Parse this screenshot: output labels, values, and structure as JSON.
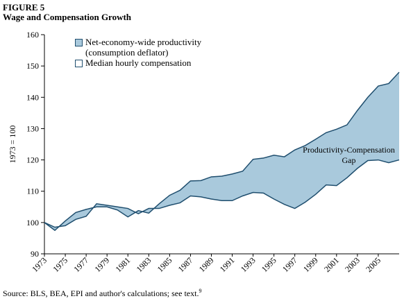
{
  "chart_data": {
    "type": "line",
    "title": "FIGURE 5",
    "subtitle": "Wage and Compensation Growth",
    "ylabel": "1973 = 100",
    "annotation": "Productivity-Compensation Gap",
    "source": "Source: BLS, BEA, EPI and author's calculations; see text.",
    "source_footnote": "9",
    "x": [
      1973,
      1974,
      1975,
      1976,
      1977,
      1978,
      1979,
      1980,
      1981,
      1982,
      1983,
      1984,
      1985,
      1986,
      1987,
      1988,
      1989,
      1990,
      1991,
      1992,
      1993,
      1994,
      1995,
      1996,
      1997,
      1998,
      1999,
      2000,
      2001,
      2002,
      2003,
      2004,
      2005,
      2006,
      2007
    ],
    "series": [
      {
        "name": "Net-economy-wide productivity (consumption deflator)",
        "color": "#1f4e6e",
        "fill": "#a9c9dc",
        "values": [
          100,
          97.5,
          100.5,
          103.2,
          104.2,
          105,
          105,
          104,
          101.8,
          103.8,
          103,
          106,
          108.7,
          110.3,
          113.3,
          113.4,
          114.6,
          114.8,
          115.5,
          116.4,
          120.2,
          120.6,
          121.5,
          121,
          123.2,
          124.6,
          126.6,
          128.7,
          129.8,
          131.2,
          135.8,
          140,
          143.6,
          144.4,
          148
        ]
      },
      {
        "name": "Median hourly compensation",
        "color": "#1f4e6e",
        "fill": "#ffffff",
        "values": [
          100,
          98.5,
          99,
          101,
          102,
          106,
          105.5,
          105,
          104.5,
          102.8,
          104.5,
          104.5,
          105.5,
          106.3,
          108.5,
          108.2,
          107.5,
          107,
          107,
          108.5,
          109.6,
          109.4,
          107.5,
          105.8,
          104.5,
          106.5,
          109,
          112,
          111.8,
          114.3,
          117.3,
          119.8,
          120,
          119.1,
          120
        ]
      }
    ],
    "xlim": [
      1973,
      2007
    ],
    "xticks": [
      1973,
      1975,
      1977,
      1979,
      1981,
      1983,
      1985,
      1987,
      1989,
      1991,
      1993,
      1995,
      1997,
      1999,
      2001,
      2003,
      2005
    ],
    "ylim": [
      90,
      160
    ],
    "yticks": [
      90,
      100,
      110,
      120,
      130,
      140,
      150,
      160
    ]
  }
}
